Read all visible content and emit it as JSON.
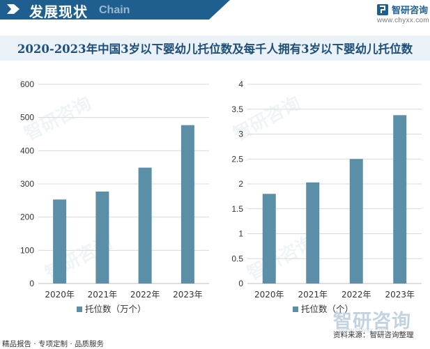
{
  "header": {
    "title": "发展现状",
    "subtitle_en": "Chain"
  },
  "brand": {
    "name": "智研咨询",
    "url": "www.chyxx.com"
  },
  "watermark": {
    "text": "智研咨询",
    "url": "www.chyxx.com"
  },
  "title": "2020-2023年中国3岁以下婴幼儿托位数及每千人拥有3岁以下婴幼儿托位数",
  "footer": {
    "left": "精品报告 · 专项定制 · 品质服务",
    "source": "资料来源：智研咨询整理"
  },
  "colors": {
    "bar": "#5b8fa8",
    "header_bg": "#1f5f8f",
    "grid": "#d9d9d9",
    "title": "#1d4f7a"
  },
  "chart_data": [
    {
      "type": "bar",
      "categories": [
        "2020年",
        "2021年",
        "2022年",
        "2023年"
      ],
      "series": [
        {
          "name": "托位数（万个）",
          "values": [
            253,
            277,
            349,
            477
          ]
        }
      ],
      "ylim": [
        0,
        600
      ],
      "yticks": [
        "0",
        "100",
        "200",
        "300",
        "400",
        "500",
        "600"
      ],
      "legend": "bottom",
      "grid": true
    },
    {
      "type": "bar",
      "categories": [
        "2020年",
        "2021年",
        "2022年",
        "2023年"
      ],
      "series": [
        {
          "name": "托位数（个）",
          "values": [
            1.8,
            2.03,
            2.5,
            3.38
          ]
        }
      ],
      "ylim": [
        0,
        4
      ],
      "yticks": [
        "0",
        "0.5",
        "1",
        "1.5",
        "2",
        "2.5",
        "3",
        "3.5",
        "4"
      ],
      "legend": "bottom",
      "grid": true
    }
  ]
}
